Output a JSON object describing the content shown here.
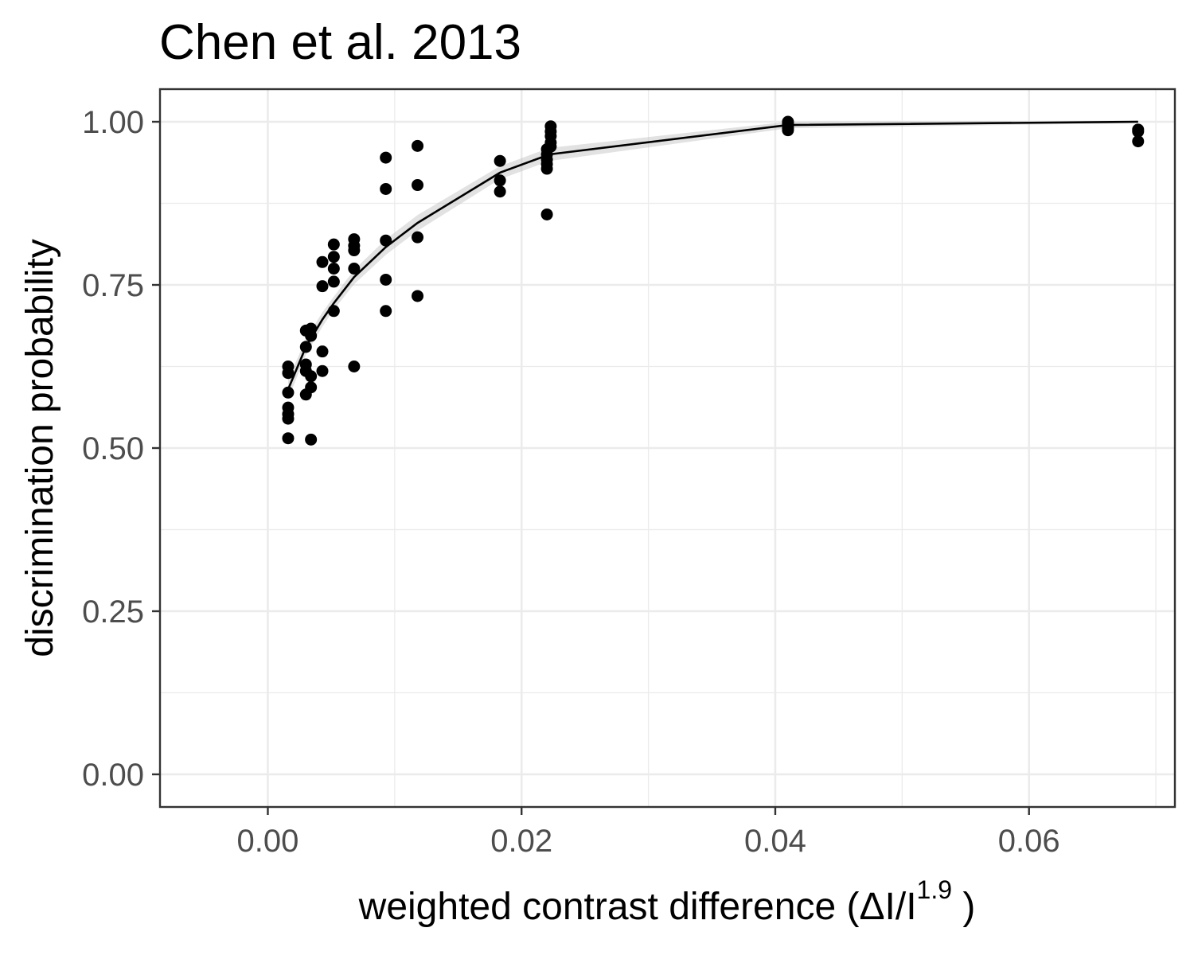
{
  "chart_data": {
    "type": "scatter",
    "title": "Chen et al. 2013",
    "xlabel": {
      "main": "weighted  contrast  difference (ΔI/I",
      "superscript": "1.9",
      "close": " )"
    },
    "ylabel": "discrimination probability",
    "xlim": [
      -0.0085,
      0.0715
    ],
    "ylim": [
      -0.05,
      1.05
    ],
    "x_ticks": [
      0.0,
      0.02,
      0.04,
      0.06
    ],
    "x_tick_labels": [
      "0.00",
      "0.02",
      "0.04",
      "0.06"
    ],
    "x_minor_ticks": [
      0.01,
      0.03,
      0.05,
      0.07
    ],
    "y_ticks": [
      0.0,
      0.25,
      0.5,
      0.75,
      1.0
    ],
    "y_tick_labels": [
      "0.00",
      "0.25",
      "0.50",
      "0.75",
      "1.00"
    ],
    "y_minor_ticks": [
      0.125,
      0.375,
      0.625,
      0.875
    ],
    "grid": true,
    "legend": "none",
    "colors": {
      "points": "#000000",
      "fit_line": "#000000",
      "ribbon": "#bfbfbf"
    },
    "points": [
      {
        "x": 0.0016,
        "y": 0.625
      },
      {
        "x": 0.0016,
        "y": 0.615
      },
      {
        "x": 0.0016,
        "y": 0.585
      },
      {
        "x": 0.0016,
        "y": 0.562
      },
      {
        "x": 0.0016,
        "y": 0.552
      },
      {
        "x": 0.0016,
        "y": 0.545
      },
      {
        "x": 0.0016,
        "y": 0.515
      },
      {
        "x": 0.003,
        "y": 0.68
      },
      {
        "x": 0.003,
        "y": 0.655
      },
      {
        "x": 0.003,
        "y": 0.628
      },
      {
        "x": 0.003,
        "y": 0.618
      },
      {
        "x": 0.003,
        "y": 0.582
      },
      {
        "x": 0.0034,
        "y": 0.683
      },
      {
        "x": 0.0034,
        "y": 0.672
      },
      {
        "x": 0.0034,
        "y": 0.61
      },
      {
        "x": 0.0034,
        "y": 0.593
      },
      {
        "x": 0.0034,
        "y": 0.513
      },
      {
        "x": 0.0043,
        "y": 0.785
      },
      {
        "x": 0.0043,
        "y": 0.748
      },
      {
        "x": 0.0043,
        "y": 0.648
      },
      {
        "x": 0.0043,
        "y": 0.618
      },
      {
        "x": 0.0052,
        "y": 0.812
      },
      {
        "x": 0.0052,
        "y": 0.793
      },
      {
        "x": 0.0052,
        "y": 0.775
      },
      {
        "x": 0.0052,
        "y": 0.755
      },
      {
        "x": 0.0052,
        "y": 0.71
      },
      {
        "x": 0.0068,
        "y": 0.82
      },
      {
        "x": 0.0068,
        "y": 0.81
      },
      {
        "x": 0.0068,
        "y": 0.803
      },
      {
        "x": 0.0068,
        "y": 0.775
      },
      {
        "x": 0.0068,
        "y": 0.625
      },
      {
        "x": 0.0093,
        "y": 0.945
      },
      {
        "x": 0.0093,
        "y": 0.897
      },
      {
        "x": 0.0093,
        "y": 0.818
      },
      {
        "x": 0.0093,
        "y": 0.758
      },
      {
        "x": 0.0093,
        "y": 0.71
      },
      {
        "x": 0.0118,
        "y": 0.963
      },
      {
        "x": 0.0118,
        "y": 0.903
      },
      {
        "x": 0.0118,
        "y": 0.823
      },
      {
        "x": 0.0118,
        "y": 0.733
      },
      {
        "x": 0.0183,
        "y": 0.94
      },
      {
        "x": 0.0183,
        "y": 0.91
      },
      {
        "x": 0.0183,
        "y": 0.893
      },
      {
        "x": 0.022,
        "y": 0.958
      },
      {
        "x": 0.022,
        "y": 0.95
      },
      {
        "x": 0.022,
        "y": 0.942
      },
      {
        "x": 0.022,
        "y": 0.935
      },
      {
        "x": 0.022,
        "y": 0.928
      },
      {
        "x": 0.022,
        "y": 0.858
      },
      {
        "x": 0.0223,
        "y": 0.993
      },
      {
        "x": 0.0223,
        "y": 0.985
      },
      {
        "x": 0.0223,
        "y": 0.978
      },
      {
        "x": 0.0223,
        "y": 0.968
      },
      {
        "x": 0.0223,
        "y": 0.962
      },
      {
        "x": 0.041,
        "y": 1.0
      },
      {
        "x": 0.041,
        "y": 0.997
      },
      {
        "x": 0.041,
        "y": 0.993
      },
      {
        "x": 0.041,
        "y": 0.99
      },
      {
        "x": 0.041,
        "y": 0.987
      },
      {
        "x": 0.0686,
        "y": 0.988
      },
      {
        "x": 0.0686,
        "y": 0.985
      },
      {
        "x": 0.0686,
        "y": 0.97
      }
    ],
    "fit_line": {
      "x": [
        0.0016,
        0.003,
        0.0043,
        0.0052,
        0.0068,
        0.0093,
        0.0118,
        0.0183,
        0.0222,
        0.041,
        0.0686
      ],
      "y": [
        0.59,
        0.655,
        0.697,
        0.722,
        0.762,
        0.808,
        0.845,
        0.922,
        0.95,
        0.995,
        1.0
      ],
      "lower": [
        0.575,
        0.643,
        0.686,
        0.712,
        0.751,
        0.796,
        0.833,
        0.912,
        0.94,
        0.99,
        0.998
      ],
      "upper": [
        0.605,
        0.667,
        0.708,
        0.732,
        0.773,
        0.82,
        0.857,
        0.932,
        0.96,
        1.0,
        1.002
      ]
    }
  }
}
